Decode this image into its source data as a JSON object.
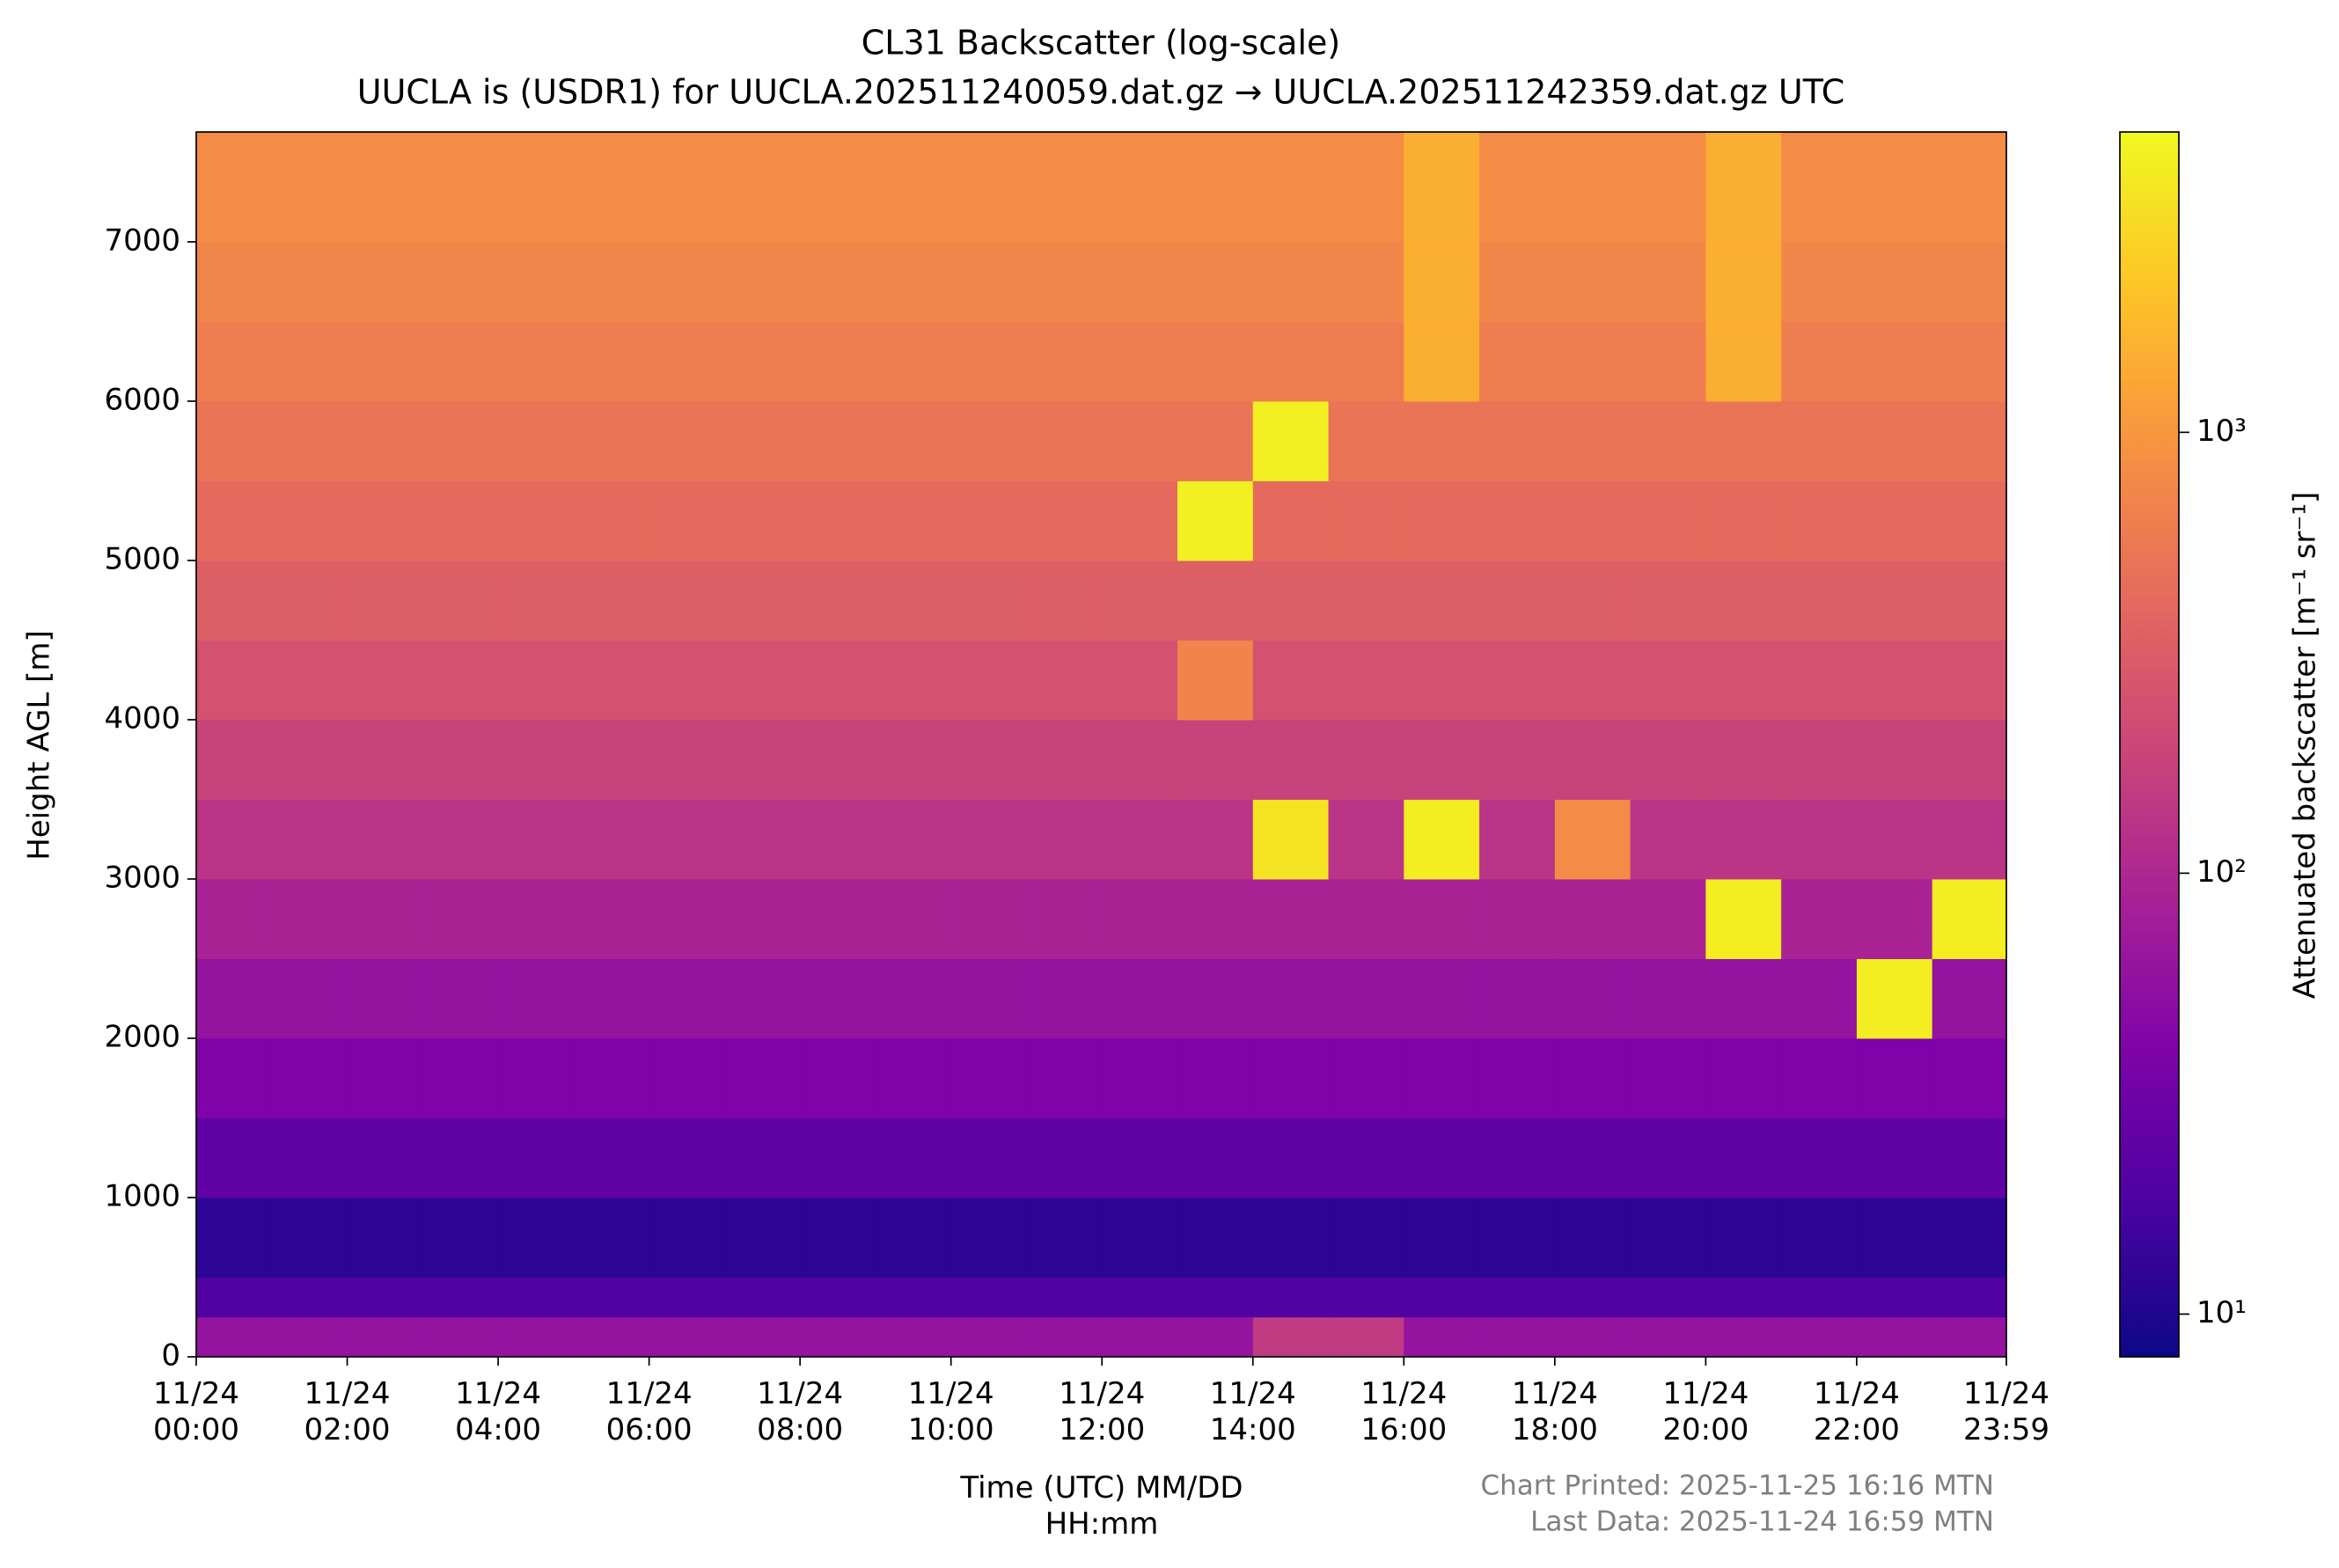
{
  "chart_data": {
    "type": "heatmap",
    "title": "CL31 Backscatter (log-scale)",
    "subtitle": "UUCLA is (USDR1) for UUCLA.202511240059.dat.gz → UUCLA.202511242359.dat.gz UTC",
    "xlabel": "Time (UTC) MM/DD\nHH:mm",
    "ylabel": "Height AGL [m]",
    "colorbar_label": "Attenuated backscatter [m⁻¹ sr⁻¹]",
    "notes": [
      "Chart Printed: 2025-11-25 16:16 MTN",
      "Last Data: 2025-11-24 16:59 MTN"
    ],
    "colormap": "plasma",
    "log_color_scale": true,
    "x_edges": [
      0,
      1,
      2,
      3,
      4,
      5,
      6,
      7,
      8,
      9,
      10,
      11,
      12,
      13,
      14,
      15,
      16,
      17,
      18,
      19,
      20,
      21,
      22,
      23,
      23.983
    ],
    "y_edges": [
      0,
      250,
      500,
      1000,
      1500,
      2000,
      2500,
      3000,
      3500,
      4000,
      4500,
      5000,
      5500,
      6000,
      6500,
      7000,
      7690
    ],
    "z": [
      [
        60,
        60,
        60,
        60,
        60,
        60,
        60,
        60,
        60,
        60,
        60,
        60,
        60,
        60,
        150,
        150,
        60,
        60,
        60,
        60,
        60,
        60,
        60,
        60
      ],
      [
        20,
        20,
        20,
        20,
        20,
        20,
        20,
        20,
        20,
        20,
        20,
        20,
        20,
        20,
        20,
        20,
        20,
        20,
        20,
        20,
        20,
        20,
        20,
        20
      ],
      [
        12,
        12,
        12,
        12,
        12,
        12,
        12,
        12,
        12,
        12,
        12,
        12,
        12,
        12,
        12,
        12,
        12,
        12,
        12,
        12,
        12,
        12,
        12,
        12
      ],
      [
        25,
        25,
        25,
        25,
        25,
        25,
        25,
        25,
        25,
        25,
        25,
        25,
        25,
        25,
        25,
        25,
        25,
        25,
        25,
        25,
        25,
        25,
        25,
        25
      ],
      [
        40,
        40,
        40,
        40,
        40,
        40,
        40,
        40,
        40,
        40,
        40,
        40,
        40,
        40,
        40,
        40,
        40,
        40,
        40,
        40,
        40,
        40,
        40,
        40
      ],
      [
        60,
        60,
        60,
        60,
        60,
        60,
        60,
        60,
        60,
        60,
        60,
        60,
        60,
        60,
        60,
        60,
        60,
        60,
        60,
        60,
        60,
        60,
        4000,
        60
      ],
      [
        90,
        90,
        90,
        90,
        90,
        90,
        90,
        90,
        90,
        90,
        90,
        90,
        90,
        90,
        90,
        90,
        90,
        90,
        90,
        90,
        4000,
        90,
        90,
        4000
      ],
      [
        130,
        130,
        130,
        130,
        130,
        130,
        130,
        130,
        130,
        130,
        130,
        130,
        130,
        130,
        3500,
        130,
        4000,
        130,
        800,
        130,
        130,
        130,
        130,
        130
      ],
      [
        180,
        180,
        180,
        180,
        180,
        180,
        180,
        180,
        180,
        180,
        180,
        180,
        180,
        180,
        180,
        180,
        180,
        180,
        180,
        180,
        180,
        180,
        180,
        180
      ],
      [
        250,
        250,
        250,
        250,
        250,
        250,
        250,
        250,
        250,
        250,
        250,
        250,
        250,
        700,
        250,
        250,
        250,
        250,
        250,
        250,
        250,
        250,
        250,
        250
      ],
      [
        330,
        330,
        330,
        330,
        330,
        330,
        330,
        330,
        330,
        330,
        330,
        330,
        330,
        330,
        330,
        330,
        330,
        330,
        330,
        330,
        330,
        330,
        330,
        330
      ],
      [
        420,
        420,
        420,
        420,
        420,
        420,
        420,
        420,
        420,
        420,
        420,
        420,
        420,
        4200,
        420,
        420,
        420,
        420,
        420,
        420,
        420,
        420,
        420,
        420
      ],
      [
        520,
        520,
        520,
        520,
        520,
        520,
        520,
        520,
        520,
        520,
        520,
        520,
        520,
        520,
        4200,
        520,
        520,
        520,
        520,
        520,
        520,
        520,
        520,
        520
      ],
      [
        620,
        620,
        620,
        620,
        620,
        620,
        620,
        620,
        620,
        620,
        620,
        620,
        620,
        620,
        620,
        620,
        1500,
        620,
        620,
        620,
        1500,
        620,
        620,
        620
      ],
      [
        720,
        720,
        720,
        720,
        720,
        720,
        720,
        720,
        720,
        720,
        720,
        720,
        720,
        720,
        720,
        720,
        1500,
        720,
        720,
        720,
        1500,
        720,
        720,
        720
      ],
      [
        820,
        820,
        820,
        820,
        820,
        820,
        820,
        820,
        820,
        820,
        820,
        820,
        820,
        820,
        820,
        820,
        1500,
        820,
        820,
        820,
        1500,
        820,
        820,
        820
      ]
    ],
    "xlim": [
      0,
      23.983
    ],
    "ylim": [
      0,
      7690
    ],
    "clim": [
      8,
      4800
    ],
    "xticks": [
      {
        "value": 0,
        "label": "11/24\n00:00"
      },
      {
        "value": 2,
        "label": "11/24\n02:00"
      },
      {
        "value": 4,
        "label": "11/24\n04:00"
      },
      {
        "value": 6,
        "label": "11/24\n06:00"
      },
      {
        "value": 8,
        "label": "11/24\n08:00"
      },
      {
        "value": 10,
        "label": "11/24\n10:00"
      },
      {
        "value": 12,
        "label": "11/24\n12:00"
      },
      {
        "value": 14,
        "label": "11/24\n14:00"
      },
      {
        "value": 16,
        "label": "11/24\n16:00"
      },
      {
        "value": 18,
        "label": "11/24\n18:00"
      },
      {
        "value": 20,
        "label": "11/24\n20:00"
      },
      {
        "value": 22,
        "label": "11/24\n22:00"
      },
      {
        "value": 23.983,
        "label": "11/24\n23:59"
      }
    ],
    "yticks": [
      0,
      1000,
      2000,
      3000,
      4000,
      5000,
      6000,
      7000
    ],
    "cticks": [
      {
        "value": 10,
        "label": "10¹"
      },
      {
        "value": 100,
        "label": "10²"
      },
      {
        "value": 1000,
        "label": "10³"
      }
    ],
    "grid": false
  }
}
